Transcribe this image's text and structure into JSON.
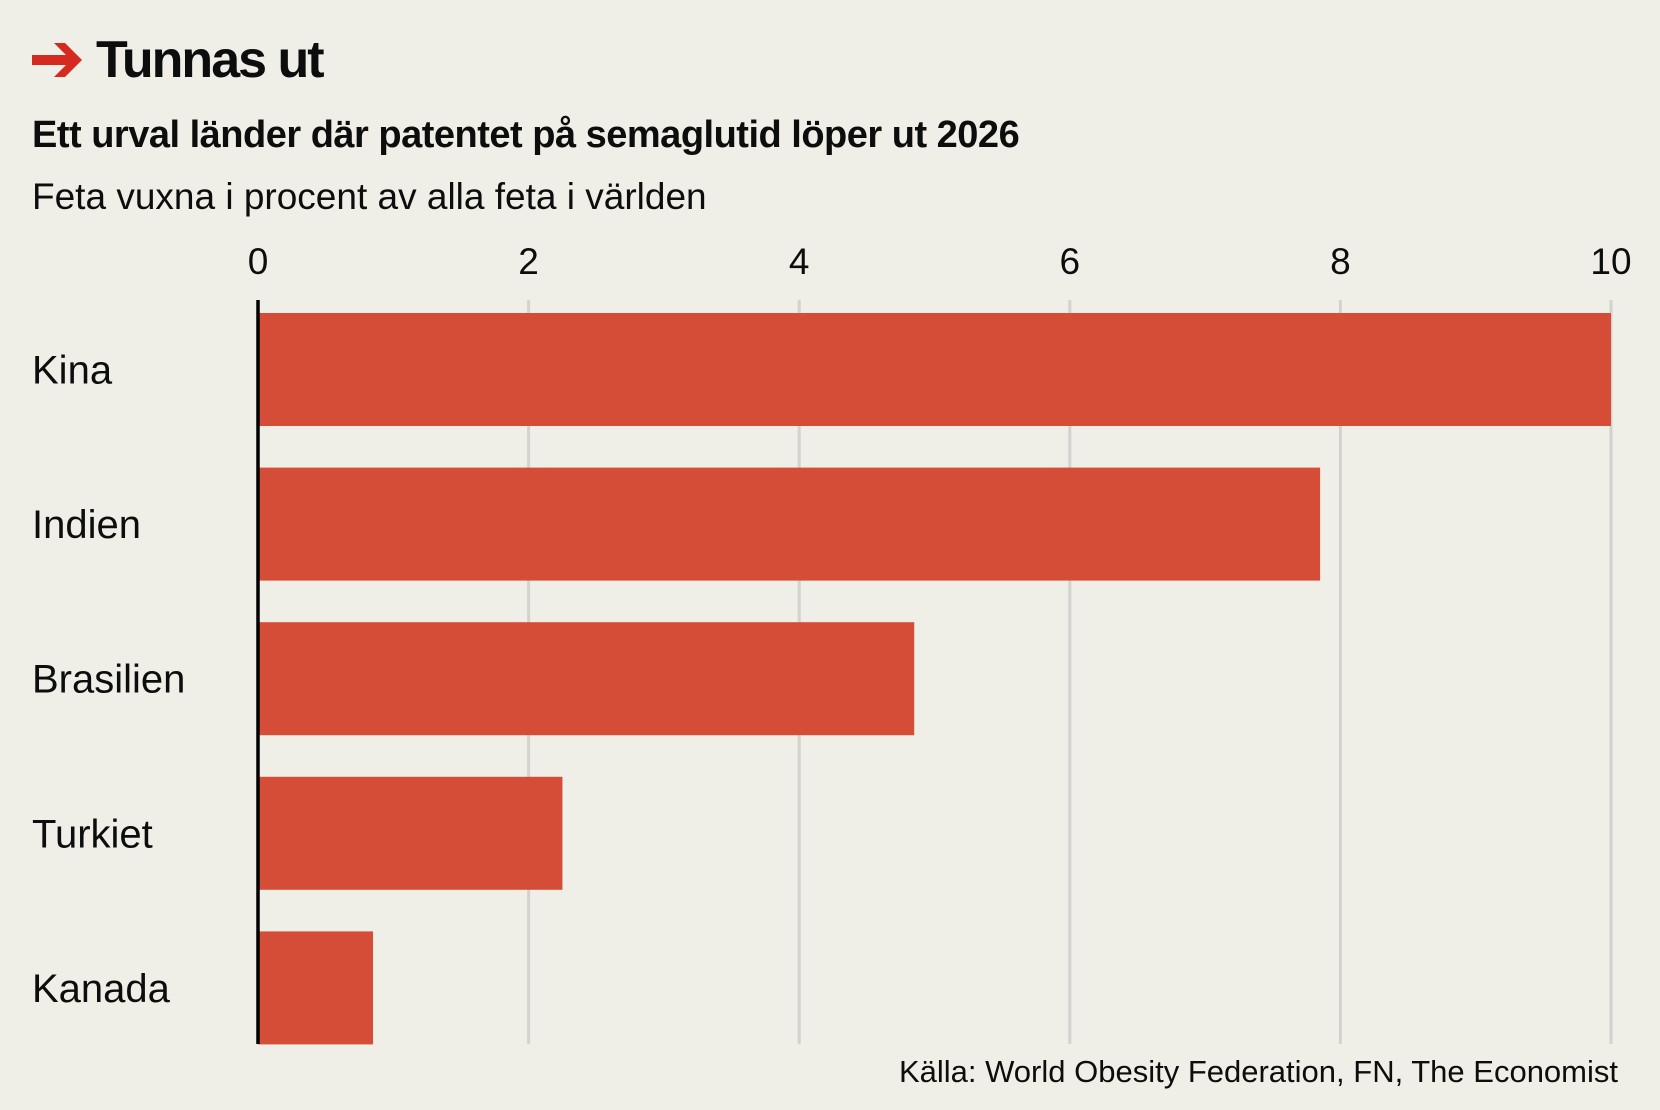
{
  "header": {
    "title": "Tunnas ut",
    "subtitle": "Ett urval länder där patentet på semaglutid löper ut 2026",
    "unit_label": "Feta vuxna i procent av alla feta i världen",
    "arrow_icon": "arrow-right-icon",
    "accent_color": "#d42a20"
  },
  "chart_data": {
    "type": "bar",
    "orientation": "horizontal",
    "title": "Tunnas ut",
    "subtitle": "Ett urval länder där patentet på semaglutid löper ut 2026",
    "xlabel": "Feta vuxna i procent av alla feta i världen",
    "ylabel": "",
    "categories": [
      "Kina",
      "Indien",
      "Brasilien",
      "Turkiet",
      "Kanada"
    ],
    "values": [
      10.0,
      7.85,
      4.85,
      2.25,
      0.85
    ],
    "xlim": [
      0,
      10
    ],
    "xticks": [
      0,
      2,
      4,
      6,
      8,
      10
    ],
    "xtick_labels": [
      "0",
      "2",
      "4",
      "6",
      "8",
      "10"
    ],
    "grid": true,
    "bar_color": "#d64d37",
    "source": "Källa: World Obesity Federation, FN, The Economist"
  }
}
